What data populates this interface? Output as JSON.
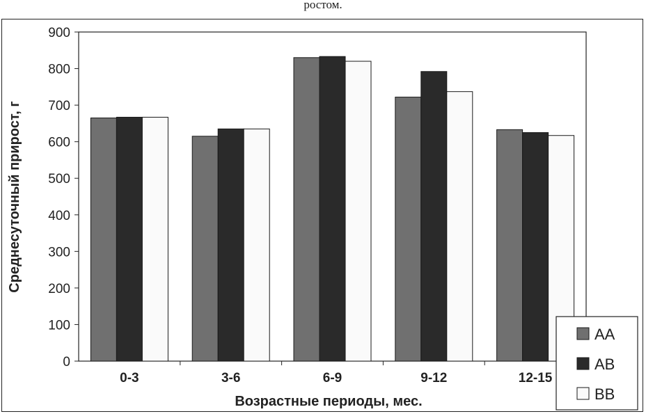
{
  "caption": "ростом.",
  "chart_data": {
    "type": "bar",
    "title": "",
    "xlabel": "Возрастные периоды, мес.",
    "ylabel": "Среднесуточный прирост, г",
    "categories": [
      "0-3",
      "3-6",
      "6-9",
      "9-12",
      "12-15"
    ],
    "series": [
      {
        "name": "AA",
        "color": "#707070",
        "values": [
          665,
          615,
          830,
          722,
          633
        ]
      },
      {
        "name": "AB",
        "color": "#2a2a2a",
        "values": [
          667,
          635,
          833,
          792,
          625
        ]
      },
      {
        "name": "BB",
        "color": "#fafafa",
        "values": [
          667,
          635,
          820,
          737,
          617
        ]
      }
    ],
    "ylim": [
      0,
      900
    ],
    "yticks": [
      0,
      100,
      200,
      300,
      400,
      500,
      600,
      700,
      800,
      900
    ],
    "grid": false,
    "legend": "bottom-right"
  }
}
